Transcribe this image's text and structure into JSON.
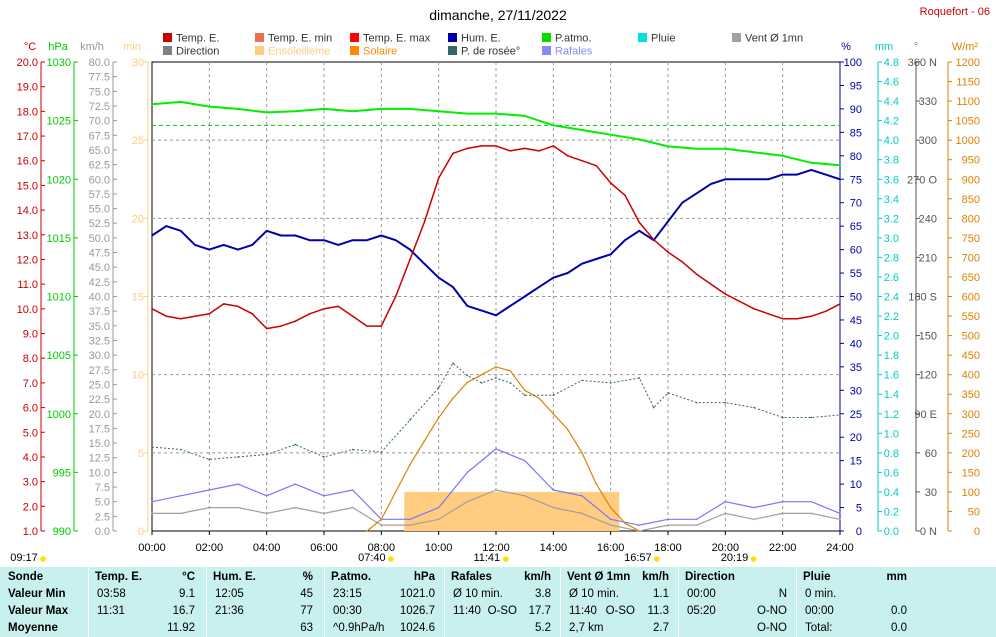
{
  "title": "dimanche, 27/11/2022",
  "station": "Roquefort - 06",
  "colors": {
    "temp": "#cc0000",
    "temp_axis": "#cc0000",
    "pressure": "#00dd00",
    "humidity": "#0000aa",
    "rain": "#00cccc",
    "wind": "#a0a0a0",
    "gust": "#7777ff",
    "solar": "#e08000",
    "sunshine": "#ffcc80",
    "dew": "#336666",
    "direction": "#808080"
  },
  "legend": [
    {
      "label": "Temp. E.",
      "color": "#cc0000"
    },
    {
      "label": "Temp. E. min",
      "color": "#e87050"
    },
    {
      "label": "Temp. E. max",
      "color": "#ff0000"
    },
    {
      "label": "Hum. E.",
      "color": "#0000aa"
    },
    {
      "label": "P.atmo.",
      "color": "#00dd00"
    },
    {
      "label": "Pluie",
      "color": "#00e0e0"
    },
    {
      "label": "Vent Ø 1mn",
      "color": "#a0a0a0"
    },
    {
      "label": "Direction",
      "color": "#808080"
    },
    {
      "label": "Ensoleilleme",
      "color": "#ffcc80"
    },
    {
      "label": "Solaire",
      "color": "#ff8800"
    },
    {
      "label": "P. de rosée°",
      "color": "#336666"
    },
    {
      "label": "Rafales",
      "color": "#8888ff"
    }
  ],
  "axis_units": {
    "temp": "°C",
    "pressure": "hPa",
    "wind": "km/h",
    "min": "min",
    "humidity": "%",
    "rain": "mm",
    "direction": "°",
    "solar": "W/m²"
  },
  "axis_ticks": {
    "temp": [
      "1.0",
      "2.0",
      "3.0",
      "4.0",
      "5.0",
      "6.0",
      "7.0",
      "8.0",
      "9.0",
      "10.0",
      "11.0",
      "12.0",
      "13.0",
      "14.0",
      "15.0",
      "16.0",
      "17.0",
      "18.0",
      "19.0",
      "20.0"
    ],
    "pressure": [
      "990",
      "995",
      "1000",
      "1005",
      "1010",
      "1015",
      "1020",
      "1025",
      "1030"
    ],
    "wind": [
      "0.0",
      "2.5",
      "5.0",
      "7.5",
      "10.0",
      "12.5",
      "15.0",
      "17.5",
      "20.0",
      "22.5",
      "25.0",
      "27.5",
      "30.0",
      "32.5",
      "35.0",
      "37.5",
      "40.0",
      "42.5",
      "45.0",
      "47.5",
      "50.0",
      "52.5",
      "55.0",
      "57.5",
      "60.0",
      "62.5",
      "65.0",
      "67.5",
      "70.0",
      "72.5",
      "75.0",
      "77.5",
      "80.0"
    ],
    "minutes": [
      "0",
      "5",
      "10",
      "15",
      "20",
      "25",
      "30"
    ],
    "humidity": [
      "0",
      "5",
      "10",
      "15",
      "20",
      "25",
      "30",
      "35",
      "40",
      "45",
      "50",
      "55",
      "60",
      "65",
      "70",
      "75",
      "80",
      "85",
      "90",
      "95",
      "100"
    ],
    "rain": [
      "0.0",
      "0.2",
      "0.4",
      "0.6",
      "0.8",
      "1.0",
      "1.2",
      "1.4",
      "1.6",
      "1.8",
      "2.0",
      "2.2",
      "2.4",
      "2.6",
      "2.8",
      "3.0",
      "3.2",
      "3.4",
      "3.6",
      "3.8",
      "4.0",
      "4.2",
      "4.4",
      "4.6",
      "4.8"
    ],
    "direction": [
      "0 N",
      "30",
      "60",
      "90 E",
      "120",
      "150",
      "180 S",
      "210",
      "240",
      "270 O",
      "300",
      "330",
      "360 N"
    ],
    "solar": [
      "0",
      "50",
      "100",
      "150",
      "200",
      "250",
      "300",
      "350",
      "400",
      "450",
      "500",
      "550",
      "600",
      "650",
      "700",
      "750",
      "800",
      "850",
      "900",
      "950",
      "1000",
      "1050",
      "1100",
      "1150",
      "1200"
    ]
  },
  "x_ticks": [
    "00:00",
    "02:00",
    "04:00",
    "06:00",
    "08:00",
    "10:00",
    "12:00",
    "14:00",
    "16:00",
    "18:00",
    "20:00",
    "22:00",
    "24:00"
  ],
  "sun_markers": [
    {
      "label": "09:17",
      "hour": 0
    },
    {
      "label": "07:40",
      "hour": 7.67
    },
    {
      "label": "11:41",
      "hour": 11.68
    },
    {
      "label": "16:57",
      "hour": 16.95
    },
    {
      "label": "20:19",
      "hour": 20.32
    }
  ],
  "chart_data": {
    "type": "line",
    "title": "dimanche, 27/11/2022",
    "x_range": [
      0,
      24
    ],
    "x_unit": "h",
    "series": [
      {
        "name": "Temp. E.",
        "axis": "temp",
        "range": [
          1,
          20
        ],
        "x": [
          0,
          0.5,
          1,
          1.5,
          2,
          2.5,
          3,
          3.5,
          4,
          4.5,
          5,
          5.5,
          6,
          6.5,
          7,
          7.5,
          8,
          8.5,
          9,
          9.5,
          10,
          10.5,
          11,
          11.5,
          12,
          12.5,
          13,
          13.5,
          14,
          14.5,
          15,
          15.5,
          16,
          16.5,
          17,
          17.5,
          18,
          18.5,
          19,
          19.5,
          20,
          20.5,
          21,
          21.5,
          22,
          22.5,
          23,
          23.5,
          24
        ],
        "y": [
          10.0,
          9.7,
          9.6,
          9.7,
          9.8,
          10.2,
          10.1,
          9.8,
          9.2,
          9.3,
          9.5,
          9.8,
          10.0,
          10.1,
          9.7,
          9.3,
          9.3,
          10.5,
          12.0,
          13.5,
          15.3,
          16.3,
          16.5,
          16.6,
          16.6,
          16.4,
          16.5,
          16.4,
          16.6,
          16.2,
          16.0,
          15.8,
          15.1,
          14.6,
          13.5,
          12.8,
          12.3,
          11.9,
          11.4,
          11.0,
          10.6,
          10.3,
          10.0,
          9.8,
          9.6,
          9.6,
          9.7,
          9.9,
          10.2
        ]
      },
      {
        "name": "Hum. E.",
        "axis": "humidity",
        "range": [
          0,
          100
        ],
        "x": [
          0,
          0.5,
          1,
          1.5,
          2,
          2.5,
          3,
          3.5,
          4,
          4.5,
          5,
          5.5,
          6,
          6.5,
          7,
          7.5,
          8,
          8.5,
          9,
          9.5,
          10,
          10.5,
          11,
          11.5,
          12,
          12.5,
          13,
          13.5,
          14,
          14.5,
          15,
          15.5,
          16,
          16.5,
          17,
          17.5,
          18,
          18.5,
          19,
          19.5,
          20,
          20.5,
          21,
          21.5,
          22,
          22.5,
          23,
          23.5,
          24
        ],
        "y": [
          63,
          65,
          64,
          61,
          60,
          61,
          60,
          61,
          64,
          63,
          63,
          62,
          62,
          61,
          62,
          62,
          63,
          62,
          60,
          57,
          54,
          52,
          48,
          47,
          46,
          48,
          50,
          52,
          54,
          55,
          57,
          58,
          59,
          62,
          64,
          62,
          66,
          70,
          72,
          74,
          75,
          75,
          75,
          75,
          76,
          76,
          77,
          76,
          75
        ]
      },
      {
        "name": "P.atmo.",
        "axis": "pressure",
        "range": [
          990,
          1030
        ],
        "x": [
          0,
          1,
          2,
          3,
          4,
          5,
          6,
          7,
          8,
          9,
          10,
          11,
          12,
          13,
          14,
          15,
          16,
          17,
          18,
          19,
          20,
          21,
          22,
          23,
          24
        ],
        "y": [
          1026.4,
          1026.6,
          1026.2,
          1026.0,
          1025.7,
          1025.8,
          1026.0,
          1025.8,
          1026.0,
          1026.0,
          1025.8,
          1025.6,
          1025.6,
          1025.4,
          1024.6,
          1024.2,
          1023.8,
          1023.4,
          1022.8,
          1022.6,
          1022.6,
          1022.3,
          1022.0,
          1021.4,
          1021.2
        ]
      },
      {
        "name": "P. de rosée°",
        "axis": "temp",
        "range": [
          1,
          20
        ],
        "x": [
          0,
          1,
          2,
          3,
          4,
          5,
          6,
          7,
          8,
          9,
          10,
          10.5,
          11,
          11.5,
          12,
          12.5,
          13,
          14,
          15,
          16,
          17,
          17.5,
          18,
          19,
          20,
          21,
          22,
          23,
          24
        ],
        "y": [
          4.4,
          4.3,
          3.9,
          4.0,
          4.1,
          4.5,
          4.0,
          4.3,
          4.2,
          5.5,
          6.8,
          7.8,
          7.3,
          7.0,
          7.2,
          7.0,
          6.5,
          6.5,
          7.1,
          7.0,
          7.2,
          6.0,
          6.6,
          6.2,
          6.2,
          6.0,
          5.6,
          5.6,
          5.7
        ]
      },
      {
        "name": "Solaire",
        "axis": "solar",
        "range": [
          0,
          1200
        ],
        "x": [
          7.5,
          8,
          8.5,
          9,
          9.5,
          10,
          10.5,
          11,
          11.5,
          12,
          12.5,
          13,
          13.5,
          14,
          14.5,
          15,
          15.5,
          16,
          16.5,
          17
        ],
        "y": [
          0,
          30,
          100,
          170,
          230,
          290,
          340,
          380,
          400,
          420,
          410,
          360,
          340,
          300,
          260,
          200,
          120,
          60,
          20,
          0
        ]
      },
      {
        "name": "Rafales",
        "axis": "wind",
        "range": [
          0,
          80
        ],
        "x": [
          0,
          1,
          2,
          3,
          4,
          5,
          6,
          7,
          8,
          9,
          10,
          11,
          12,
          13,
          14,
          15,
          16,
          17,
          18,
          19,
          20,
          21,
          22,
          23,
          24
        ],
        "y": [
          5,
          6,
          7,
          8,
          6,
          8,
          6,
          7,
          2,
          2,
          4,
          10,
          14,
          12,
          7,
          6,
          2,
          1,
          2,
          2,
          5,
          4,
          5,
          5,
          3
        ]
      },
      {
        "name": "Vent Ø 1mn",
        "axis": "wind",
        "range": [
          0,
          80
        ],
        "x": [
          0,
          1,
          2,
          3,
          4,
          5,
          6,
          7,
          8,
          9,
          10,
          11,
          12,
          13,
          14,
          15,
          16,
          17,
          18,
          19,
          20,
          21,
          22,
          23,
          24
        ],
        "y": [
          3,
          3,
          4,
          4,
          3,
          4,
          3,
          4,
          1,
          1,
          2,
          5,
          7,
          6,
          4,
          3,
          1,
          0,
          1,
          1,
          3,
          2,
          3,
          3,
          2
        ]
      }
    ],
    "sunshine_band": {
      "start": 8.8,
      "end": 16.3,
      "minutes": 2.5
    },
    "pressure_mean": 1024.6
  },
  "table": {
    "row_labels": [
      "Sonde",
      "Valeur Min",
      "Valeur Max",
      "Moyenne"
    ],
    "columns": [
      {
        "title": "Temp. E.",
        "unit": "°C",
        "rows": [
          [
            "03:58",
            "",
            "9.1"
          ],
          [
            "11:31",
            "",
            "16.7"
          ],
          [
            "",
            "",
            "11.92"
          ]
        ]
      },
      {
        "title": "Hum. E.",
        "unit": "%",
        "rows": [
          [
            "12:05",
            "",
            "45"
          ],
          [
            "21:36",
            "",
            "77"
          ],
          [
            "",
            "",
            "63"
          ]
        ]
      },
      {
        "title": "P.atmo.",
        "unit": "hPa",
        "rows": [
          [
            "23:15",
            "",
            "1021.0"
          ],
          [
            "00:30",
            "",
            "1026.7"
          ],
          [
            "^0.9hPa/h",
            "",
            "1024.6"
          ]
        ]
      },
      {
        "title": "Rafales",
        "unit": "km/h",
        "rows": [
          [
            "Ø 10 min.",
            "",
            "3.8"
          ],
          [
            "11:40",
            "O-SO",
            "17.7"
          ],
          [
            "",
            "",
            "5.2"
          ]
        ]
      },
      {
        "title": "Vent Ø 1mn",
        "unit": "km/h",
        "rows": [
          [
            "Ø 10 min.",
            "",
            "1.1"
          ],
          [
            "11:40",
            "O-SO",
            "11.3"
          ],
          [
            "2,7 km",
            "",
            "2.7"
          ]
        ]
      },
      {
        "title": "Direction",
        "unit": "",
        "rows": [
          [
            "00:00",
            "",
            "N"
          ],
          [
            "05:20",
            "",
            "O-NO"
          ],
          [
            "",
            "",
            "O-NO"
          ]
        ]
      },
      {
        "title": "Pluie",
        "unit": "mm",
        "rows": [
          [
            "0 min.",
            "",
            ""
          ],
          [
            "00:00",
            "",
            "0.0"
          ],
          [
            "Total:",
            "",
            "0.0"
          ]
        ]
      }
    ]
  }
}
